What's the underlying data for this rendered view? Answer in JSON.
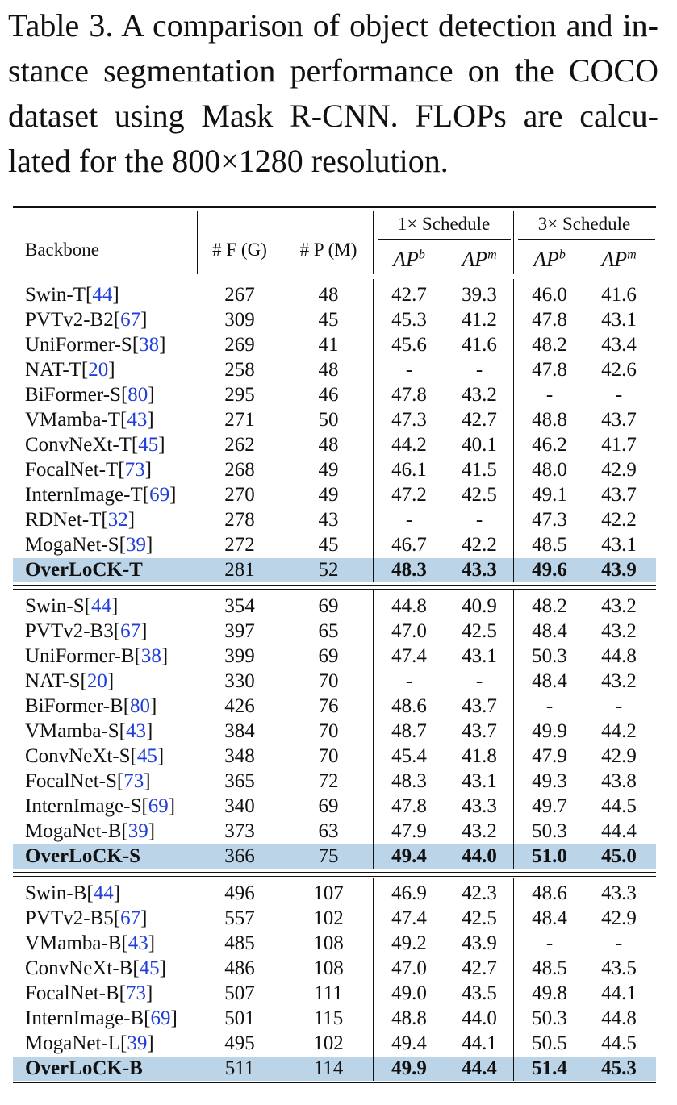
{
  "caption": {
    "lines": [
      "Table 3. A comparison of object detection and in-",
      "stance segmentation performance on the COCO",
      "dataset using Mask R-CNN. FLOPs are calcu-",
      "lated for the 800×1280 resolution."
    ]
  },
  "header": {
    "backbone": "Backbone",
    "flops": "# F (G)",
    "params": "# P (M)",
    "schedule_1x": "1× Schedule",
    "schedule_3x": "3× Schedule",
    "ap_label": "AP",
    "ap_b_sup": "b",
    "ap_m_sup": "m"
  },
  "groups": [
    {
      "rows": [
        {
          "name": "Swin-T",
          "ref": "44",
          "f": "267",
          "p": "48",
          "ab1": "42.7",
          "am1": "39.3",
          "ab3": "46.0",
          "am3": "41.6"
        },
        {
          "name": "PVTv2-B2",
          "ref": "67",
          "f": "309",
          "p": "45",
          "ab1": "45.3",
          "am1": "41.2",
          "ab3": "47.8",
          "am3": "43.1"
        },
        {
          "name": "UniFormer-S",
          "ref": "38",
          "f": "269",
          "p": "41",
          "ab1": "45.6",
          "am1": "41.6",
          "ab3": "48.2",
          "am3": "43.4"
        },
        {
          "name": "NAT-T",
          "ref": "20",
          "f": "258",
          "p": "48",
          "ab1": "-",
          "am1": "-",
          "ab3": "47.8",
          "am3": "42.6"
        },
        {
          "name": "BiFormer-S",
          "ref": "80",
          "f": "295",
          "p": "46",
          "ab1": "47.8",
          "am1": "43.2",
          "ab3": "-",
          "am3": "-"
        },
        {
          "name": "VMamba-T",
          "ref": "43",
          "f": "271",
          "p": "50",
          "ab1": "47.3",
          "am1": "42.7",
          "ab3": "48.8",
          "am3": "43.7"
        },
        {
          "name": "ConvNeXt-T",
          "ref": "45",
          "f": "262",
          "p": "48",
          "ab1": "44.2",
          "am1": "40.1",
          "ab3": "46.2",
          "am3": "41.7"
        },
        {
          "name": "FocalNet-T",
          "ref": "73",
          "f": "268",
          "p": "49",
          "ab1": "46.1",
          "am1": "41.5",
          "ab3": "48.0",
          "am3": "42.9"
        },
        {
          "name": "InternImage-T",
          "ref": "69",
          "f": "270",
          "p": "49",
          "ab1": "47.2",
          "am1": "42.5",
          "ab3": "49.1",
          "am3": "43.7"
        },
        {
          "name": "RDNet-T",
          "ref": "32",
          "f": "278",
          "p": "43",
          "ab1": "-",
          "am1": "-",
          "ab3": "47.3",
          "am3": "42.2"
        },
        {
          "name": "MogaNet-S",
          "ref": "39",
          "f": "272",
          "p": "45",
          "ab1": "46.7",
          "am1": "42.2",
          "ab3": "48.5",
          "am3": "43.1"
        }
      ],
      "ours": {
        "name": "OverLoCK-T",
        "f": "281",
        "p": "52",
        "ab1": "48.3",
        "am1": "43.3",
        "ab3": "49.6",
        "am3": "43.9"
      }
    },
    {
      "rows": [
        {
          "name": "Swin-S",
          "ref": "44",
          "f": "354",
          "p": "69",
          "ab1": "44.8",
          "am1": "40.9",
          "ab3": "48.2",
          "am3": "43.2"
        },
        {
          "name": "PVTv2-B3",
          "ref": "67",
          "f": "397",
          "p": "65",
          "ab1": "47.0",
          "am1": "42.5",
          "ab3": "48.4",
          "am3": "43.2"
        },
        {
          "name": "UniFormer-B",
          "ref": "38",
          "f": "399",
          "p": "69",
          "ab1": "47.4",
          "am1": "43.1",
          "ab3": "50.3",
          "am3": "44.8"
        },
        {
          "name": "NAT-S",
          "ref": "20",
          "f": "330",
          "p": "70",
          "ab1": "-",
          "am1": "-",
          "ab3": "48.4",
          "am3": "43.2"
        },
        {
          "name": "BiFormer-B",
          "ref": "80",
          "f": "426",
          "p": "76",
          "ab1": "48.6",
          "am1": "43.7",
          "ab3": "-",
          "am3": "-"
        },
        {
          "name": "VMamba-S",
          "ref": "43",
          "f": "384",
          "p": "70",
          "ab1": "48.7",
          "am1": "43.7",
          "ab3": "49.9",
          "am3": "44.2"
        },
        {
          "name": "ConvNeXt-S",
          "ref": "45",
          "f": "348",
          "p": "70",
          "ab1": "45.4",
          "am1": "41.8",
          "ab3": "47.9",
          "am3": "42.9"
        },
        {
          "name": "FocalNet-S",
          "ref": "73",
          "f": "365",
          "p": "72",
          "ab1": "48.3",
          "am1": "43.1",
          "ab3": "49.3",
          "am3": "43.8"
        },
        {
          "name": "InternImage-S",
          "ref": "69",
          "f": "340",
          "p": "69",
          "ab1": "47.8",
          "am1": "43.3",
          "ab3": "49.7",
          "am3": "44.5"
        },
        {
          "name": "MogaNet-B",
          "ref": "39",
          "f": "373",
          "p": "63",
          "ab1": "47.9",
          "am1": "43.2",
          "ab3": "50.3",
          "am3": "44.4"
        }
      ],
      "ours": {
        "name": "OverLoCK-S",
        "f": "366",
        "p": "75",
        "ab1": "49.4",
        "am1": "44.0",
        "ab3": "51.0",
        "am3": "45.0"
      }
    },
    {
      "rows": [
        {
          "name": "Swin-B",
          "ref": "44",
          "f": "496",
          "p": "107",
          "ab1": "46.9",
          "am1": "42.3",
          "ab3": "48.6",
          "am3": "43.3"
        },
        {
          "name": "PVTv2-B5",
          "ref": "67",
          "f": "557",
          "p": "102",
          "ab1": "47.4",
          "am1": "42.5",
          "ab3": "48.4",
          "am3": "42.9"
        },
        {
          "name": "VMamba-B",
          "ref": "43",
          "f": "485",
          "p": "108",
          "ab1": "49.2",
          "am1": "43.9",
          "ab3": "-",
          "am3": "-"
        },
        {
          "name": "ConvNeXt-B",
          "ref": "45",
          "f": "486",
          "p": "108",
          "ab1": "47.0",
          "am1": "42.7",
          "ab3": "48.5",
          "am3": "43.5"
        },
        {
          "name": "FocalNet-B",
          "ref": "73",
          "f": "507",
          "p": "111",
          "ab1": "49.0",
          "am1": "43.5",
          "ab3": "49.8",
          "am3": "44.1"
        },
        {
          "name": "InternImage-B",
          "ref": "69",
          "f": "501",
          "p": "115",
          "ab1": "48.8",
          "am1": "44.0",
          "ab3": "50.3",
          "am3": "44.8"
        },
        {
          "name": "MogaNet-L",
          "ref": "39",
          "f": "495",
          "p": "102",
          "ab1": "49.4",
          "am1": "44.1",
          "ab3": "50.5",
          "am3": "44.5"
        }
      ],
      "ours": {
        "name": "OverLoCK-B",
        "f": "511",
        "p": "114",
        "ab1": "49.9",
        "am1": "44.4",
        "ab3": "51.4",
        "am3": "45.3"
      }
    }
  ]
}
